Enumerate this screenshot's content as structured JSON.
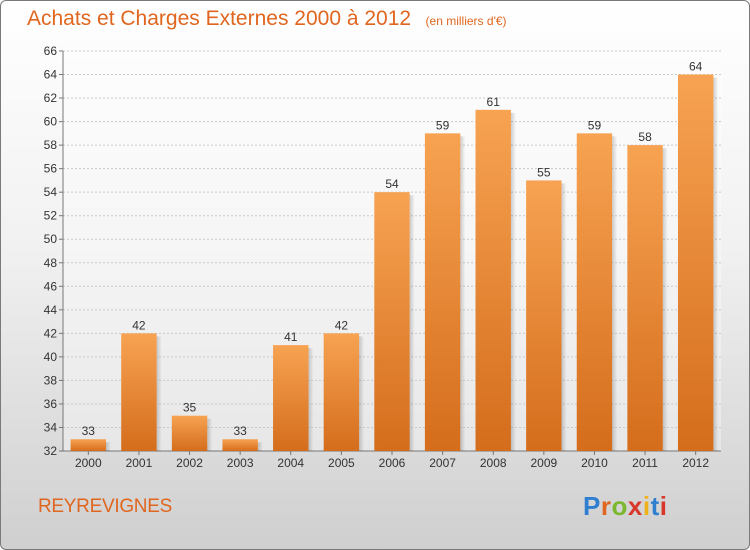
{
  "title": "Achats et Charges Externes 2000 à 2012",
  "subtitle": "(en milliers d'€)",
  "commune": "REYREVIGNES",
  "logo": {
    "letters": [
      "P",
      "r",
      "o",
      "x",
      "i",
      "t",
      "i"
    ],
    "colors": [
      "#2f7fd0",
      "#e0661f",
      "#7cb82f",
      "#d8372b",
      "#f0b21a",
      "#2f7fd0",
      "#d8372b"
    ]
  },
  "colors": {
    "bar_top": "#f7a352",
    "bar_bottom": "#d46d1c",
    "title": "#e0661f"
  },
  "chart_data": {
    "type": "bar",
    "categories": [
      "2000",
      "2001",
      "2002",
      "2003",
      "2004",
      "2005",
      "2006",
      "2007",
      "2008",
      "2009",
      "2010",
      "2011",
      "2012"
    ],
    "values": [
      33,
      42,
      35,
      33,
      41,
      42,
      54,
      59,
      61,
      55,
      59,
      58,
      64
    ],
    "ylim": [
      32,
      66
    ],
    "yticks": [
      32,
      34,
      36,
      38,
      40,
      42,
      44,
      46,
      48,
      50,
      52,
      54,
      56,
      58,
      60,
      62,
      64,
      66
    ],
    "grid": true,
    "data_labels": true
  }
}
